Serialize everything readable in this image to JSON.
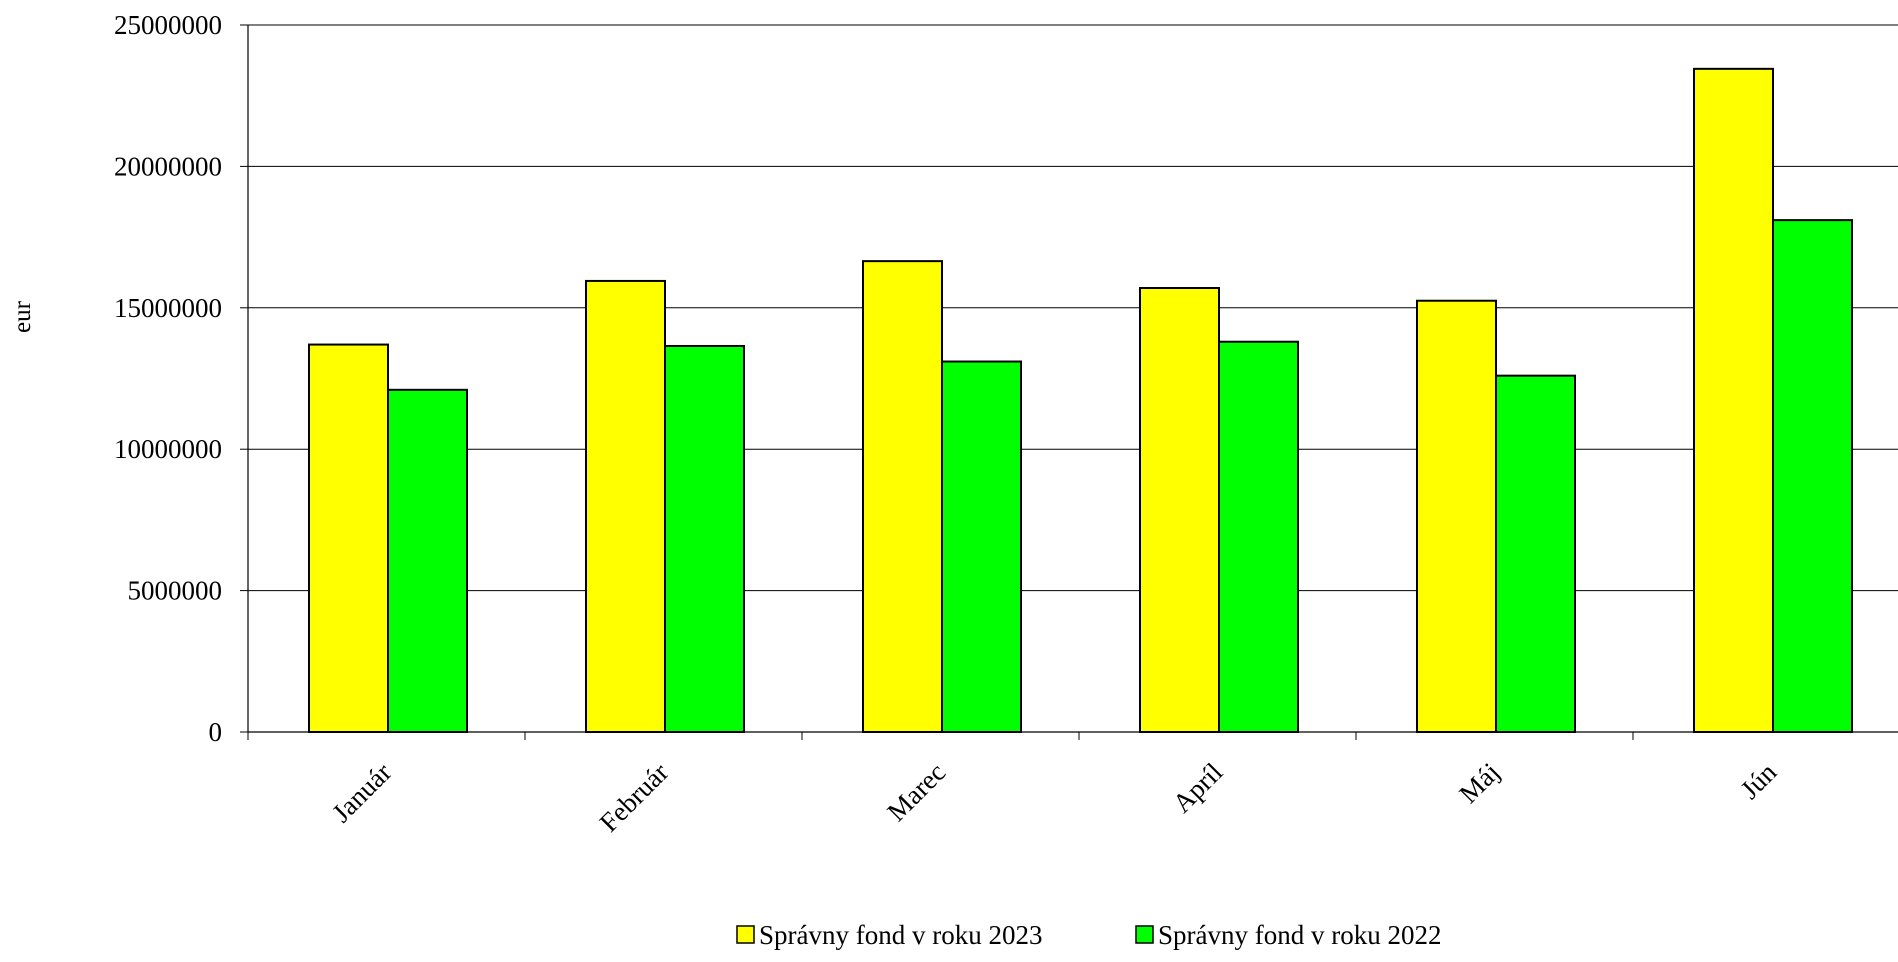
{
  "chart_data": {
    "type": "bar",
    "title": "",
    "xlabel": "",
    "ylabel": "eur",
    "categories": [
      "Január",
      "Február",
      "Marec",
      "Apríl",
      "Máj",
      "Jún"
    ],
    "series": [
      {
        "name": "Správny fond v roku 2023",
        "color": "#ffff00",
        "values": [
          13700000,
          15950000,
          16650000,
          15700000,
          15250000,
          23450000
        ]
      },
      {
        "name": "Správny fond v roku 2022",
        "color": "#00ff00",
        "values": [
          12100000,
          13650000,
          13100000,
          13800000,
          12600000,
          18100000
        ]
      }
    ],
    "ylim": [
      0,
      25000000
    ],
    "yticks": [
      0,
      5000000,
      10000000,
      15000000,
      20000000,
      25000000
    ],
    "ytick_labels": [
      "0",
      "5000000",
      "10000000",
      "15000000",
      "20000000",
      "25000000"
    ],
    "grid": true,
    "legend_position": "bottom-center"
  }
}
